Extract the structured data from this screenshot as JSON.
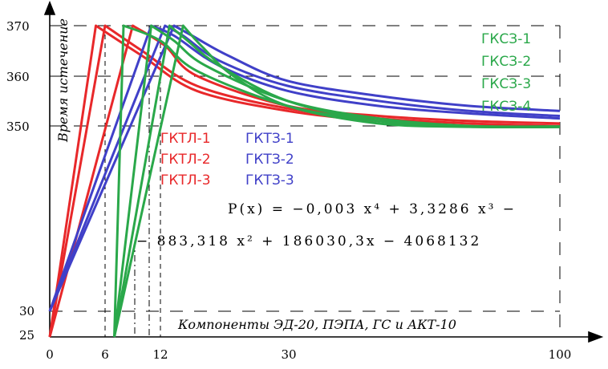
{
  "chart_data": {
    "type": "line",
    "ylabel": "Время истечение",
    "xlabel": "Компоненты ЭД-20, ПЭПА, ГС  и АКТ-10",
    "x_ticks": [
      "0",
      "6",
      "12",
      "30",
      "100"
    ],
    "y_ticks": [
      "25",
      "30",
      "350",
      "360",
      "370"
    ],
    "formula_line1": "P(x) = −0,003 x⁴ + 3,3286 x³ −",
    "formula_line2": "− 883,318 x² + 186030,3x − 4068132",
    "legend": {
      "red": [
        "ГКТЛ-1",
        "ГКТЛ-2",
        "ГКТЛ-3"
      ],
      "blue": [
        "ГКТЗ-1",
        "ГКТЗ-2",
        "ГКТЗ-3"
      ],
      "green": [
        "ГКСЗ-1",
        "ГКСЗ-2",
        "ГКСЗ-3",
        "ГКСЗ-4"
      ]
    },
    "series": [
      {
        "name": "ГКТЛ-1",
        "color": "#e8282a",
        "x": [
          0,
          5,
          10,
          20,
          40,
          60,
          80,
          100
        ],
        "y": [
          25,
          370,
          364,
          357,
          353,
          351,
          350,
          349.5
        ]
      },
      {
        "name": "ГКТЛ-2",
        "color": "#e8282a",
        "x": [
          0,
          6,
          10,
          20,
          40,
          60,
          80,
          100
        ],
        "y": [
          25,
          370,
          365,
          358,
          353.5,
          351.5,
          350.5,
          350
        ]
      },
      {
        "name": "ГКТЛ-3",
        "color": "#e8282a",
        "x": [
          0,
          9,
          13,
          20,
          40,
          60,
          80,
          100
        ],
        "y": [
          25,
          370,
          366,
          360,
          354,
          352,
          351,
          350.5
        ]
      },
      {
        "name": "ГКТЗ-1",
        "color": "#4040c8",
        "x": [
          0,
          11,
          15,
          25,
          40,
          60,
          80,
          100
        ],
        "y": [
          30,
          370,
          368,
          362,
          357,
          354,
          352.5,
          351.5
        ]
      },
      {
        "name": "ГКТЗ-2",
        "color": "#4040c8",
        "x": [
          0,
          13,
          17,
          25,
          40,
          60,
          80,
          100
        ],
        "y": [
          30,
          370,
          368,
          363,
          358,
          355,
          353,
          352
        ]
      },
      {
        "name": "ГКТЗ-3",
        "color": "#4040c8",
        "x": [
          0,
          15,
          19,
          27,
          40,
          60,
          80,
          100
        ],
        "y": [
          30,
          370,
          368,
          364,
          359,
          356,
          354,
          353
        ]
      },
      {
        "name": "ГКСЗ-1",
        "color": "#2aa84a",
        "x": [
          7,
          8,
          12,
          20,
          40,
          60,
          80,
          100
        ],
        "y": [
          25,
          370,
          367,
          361,
          354,
          351,
          349.5,
          349
        ]
      },
      {
        "name": "ГКСЗ-2",
        "color": "#2aa84a",
        "x": [
          7,
          11,
          15,
          22,
          40,
          60,
          80,
          100
        ],
        "y": [
          25,
          370,
          367,
          362,
          355,
          351.5,
          350,
          349
        ]
      },
      {
        "name": "ГКСЗ-3",
        "color": "#2aa84a",
        "x": [
          7,
          14,
          18,
          25,
          40,
          60,
          80,
          100
        ],
        "y": [
          25,
          370,
          367,
          362,
          355,
          351,
          349,
          348.5
        ]
      },
      {
        "name": "ГКСЗ-4",
        "color": "#2aa84a",
        "x": [
          7,
          17,
          21,
          28,
          40,
          60,
          80,
          100
        ],
        "y": [
          25,
          370,
          366,
          360,
          354,
          350.5,
          348.5,
          348
        ]
      }
    ]
  }
}
